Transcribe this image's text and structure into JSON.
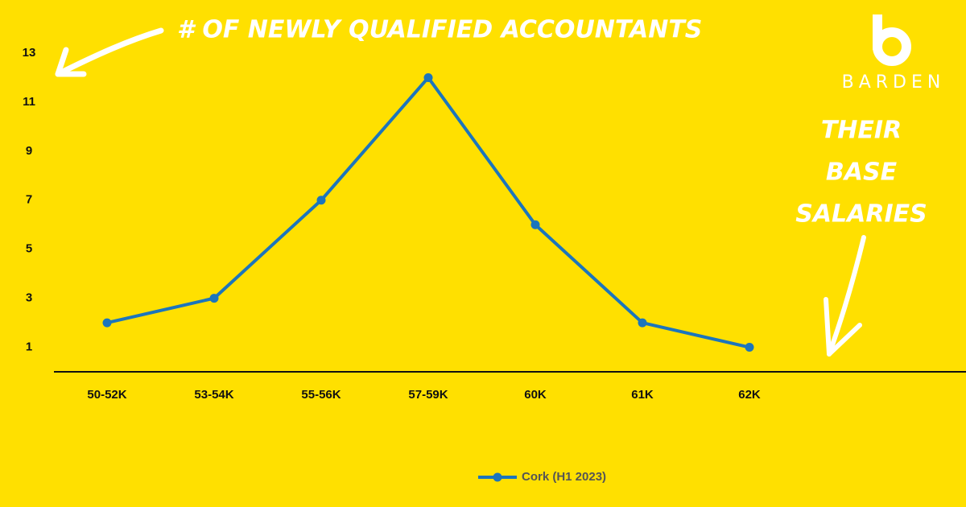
{
  "chart_data": {
    "type": "line",
    "annotations": [
      "# OF NEWLY QUALIFIED ACCOUNTANTS",
      "THEIR",
      "BASE",
      "SALARIES"
    ],
    "logo": "BARDEN",
    "categories": [
      "50-52K",
      "53-54K",
      "55-56K",
      "57-59K",
      "60K",
      "61K",
      "62K"
    ],
    "series": [
      {
        "name": "Cork (H1 2023)",
        "color": "#1c75bc",
        "values": [
          2,
          3,
          7,
          12,
          6,
          2,
          1
        ]
      }
    ],
    "ylim": [
      0,
      13
    ],
    "yticks": [
      1,
      3,
      5,
      7,
      9,
      11,
      13
    ],
    "grid": false,
    "legend": "bottom"
  }
}
